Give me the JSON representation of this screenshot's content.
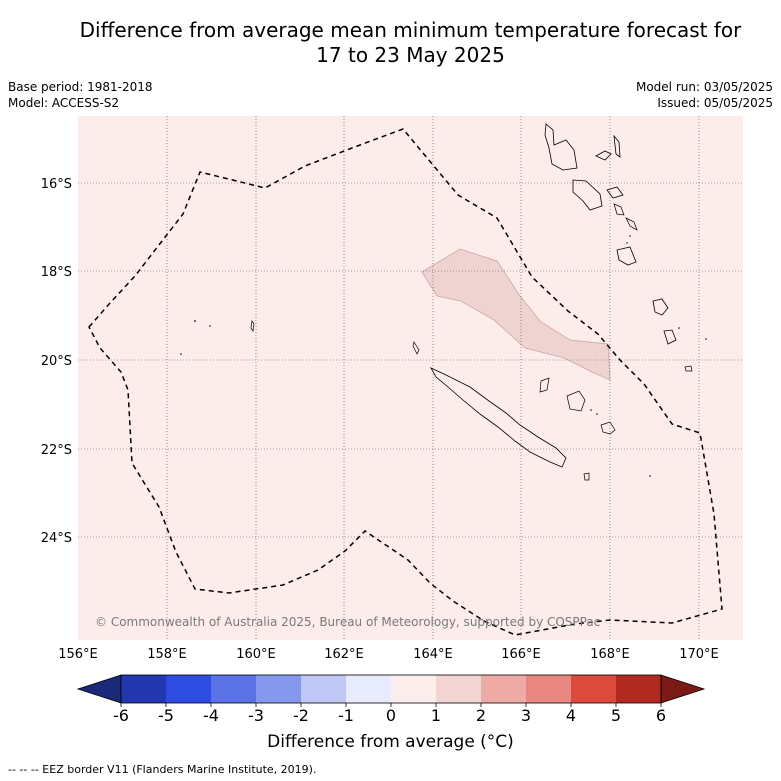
{
  "title_line1": "Difference from average mean minimum temperature forecast for",
  "title_line2": "17 to 23 May 2025",
  "meta_left": [
    "Base period: 1981-2018",
    "Model: ACCESS-S2"
  ],
  "meta_right": [
    "Model run: 03/05/2025",
    "Issued: 05/05/2025"
  ],
  "lat_labels": [
    "16°S",
    "18°S",
    "20°S",
    "22°S",
    "24°S"
  ],
  "lon_labels": [
    "156°E",
    "158°E",
    "160°E",
    "162°E",
    "164°E",
    "166°E",
    "168°E",
    "170°E"
  ],
  "copyright": "© Commonwealth of Australia 2025, Bureau of Meteorology, supported by COSPPac",
  "colorbar": {
    "ticks": [
      "-6",
      "-5",
      "-4",
      "-3",
      "-2",
      "-1",
      "0",
      "1",
      "2",
      "3",
      "4",
      "5",
      "6"
    ],
    "colors": [
      "#1a2a7a",
      "#2338b0",
      "#2f4ce0",
      "#5a72e6",
      "#8598ec",
      "#c0c8f4",
      "#e8ebfb",
      "#fdeeed",
      "#f2d5d2",
      "#eeaaa5",
      "#e8877f",
      "#dc4a3e",
      "#b02a22",
      "#7a1a14"
    ],
    "label": "Difference from average (°C)"
  },
  "footer": "--  --  -- EEZ border V11 (Flanders Marine Institute, 2019)."
}
